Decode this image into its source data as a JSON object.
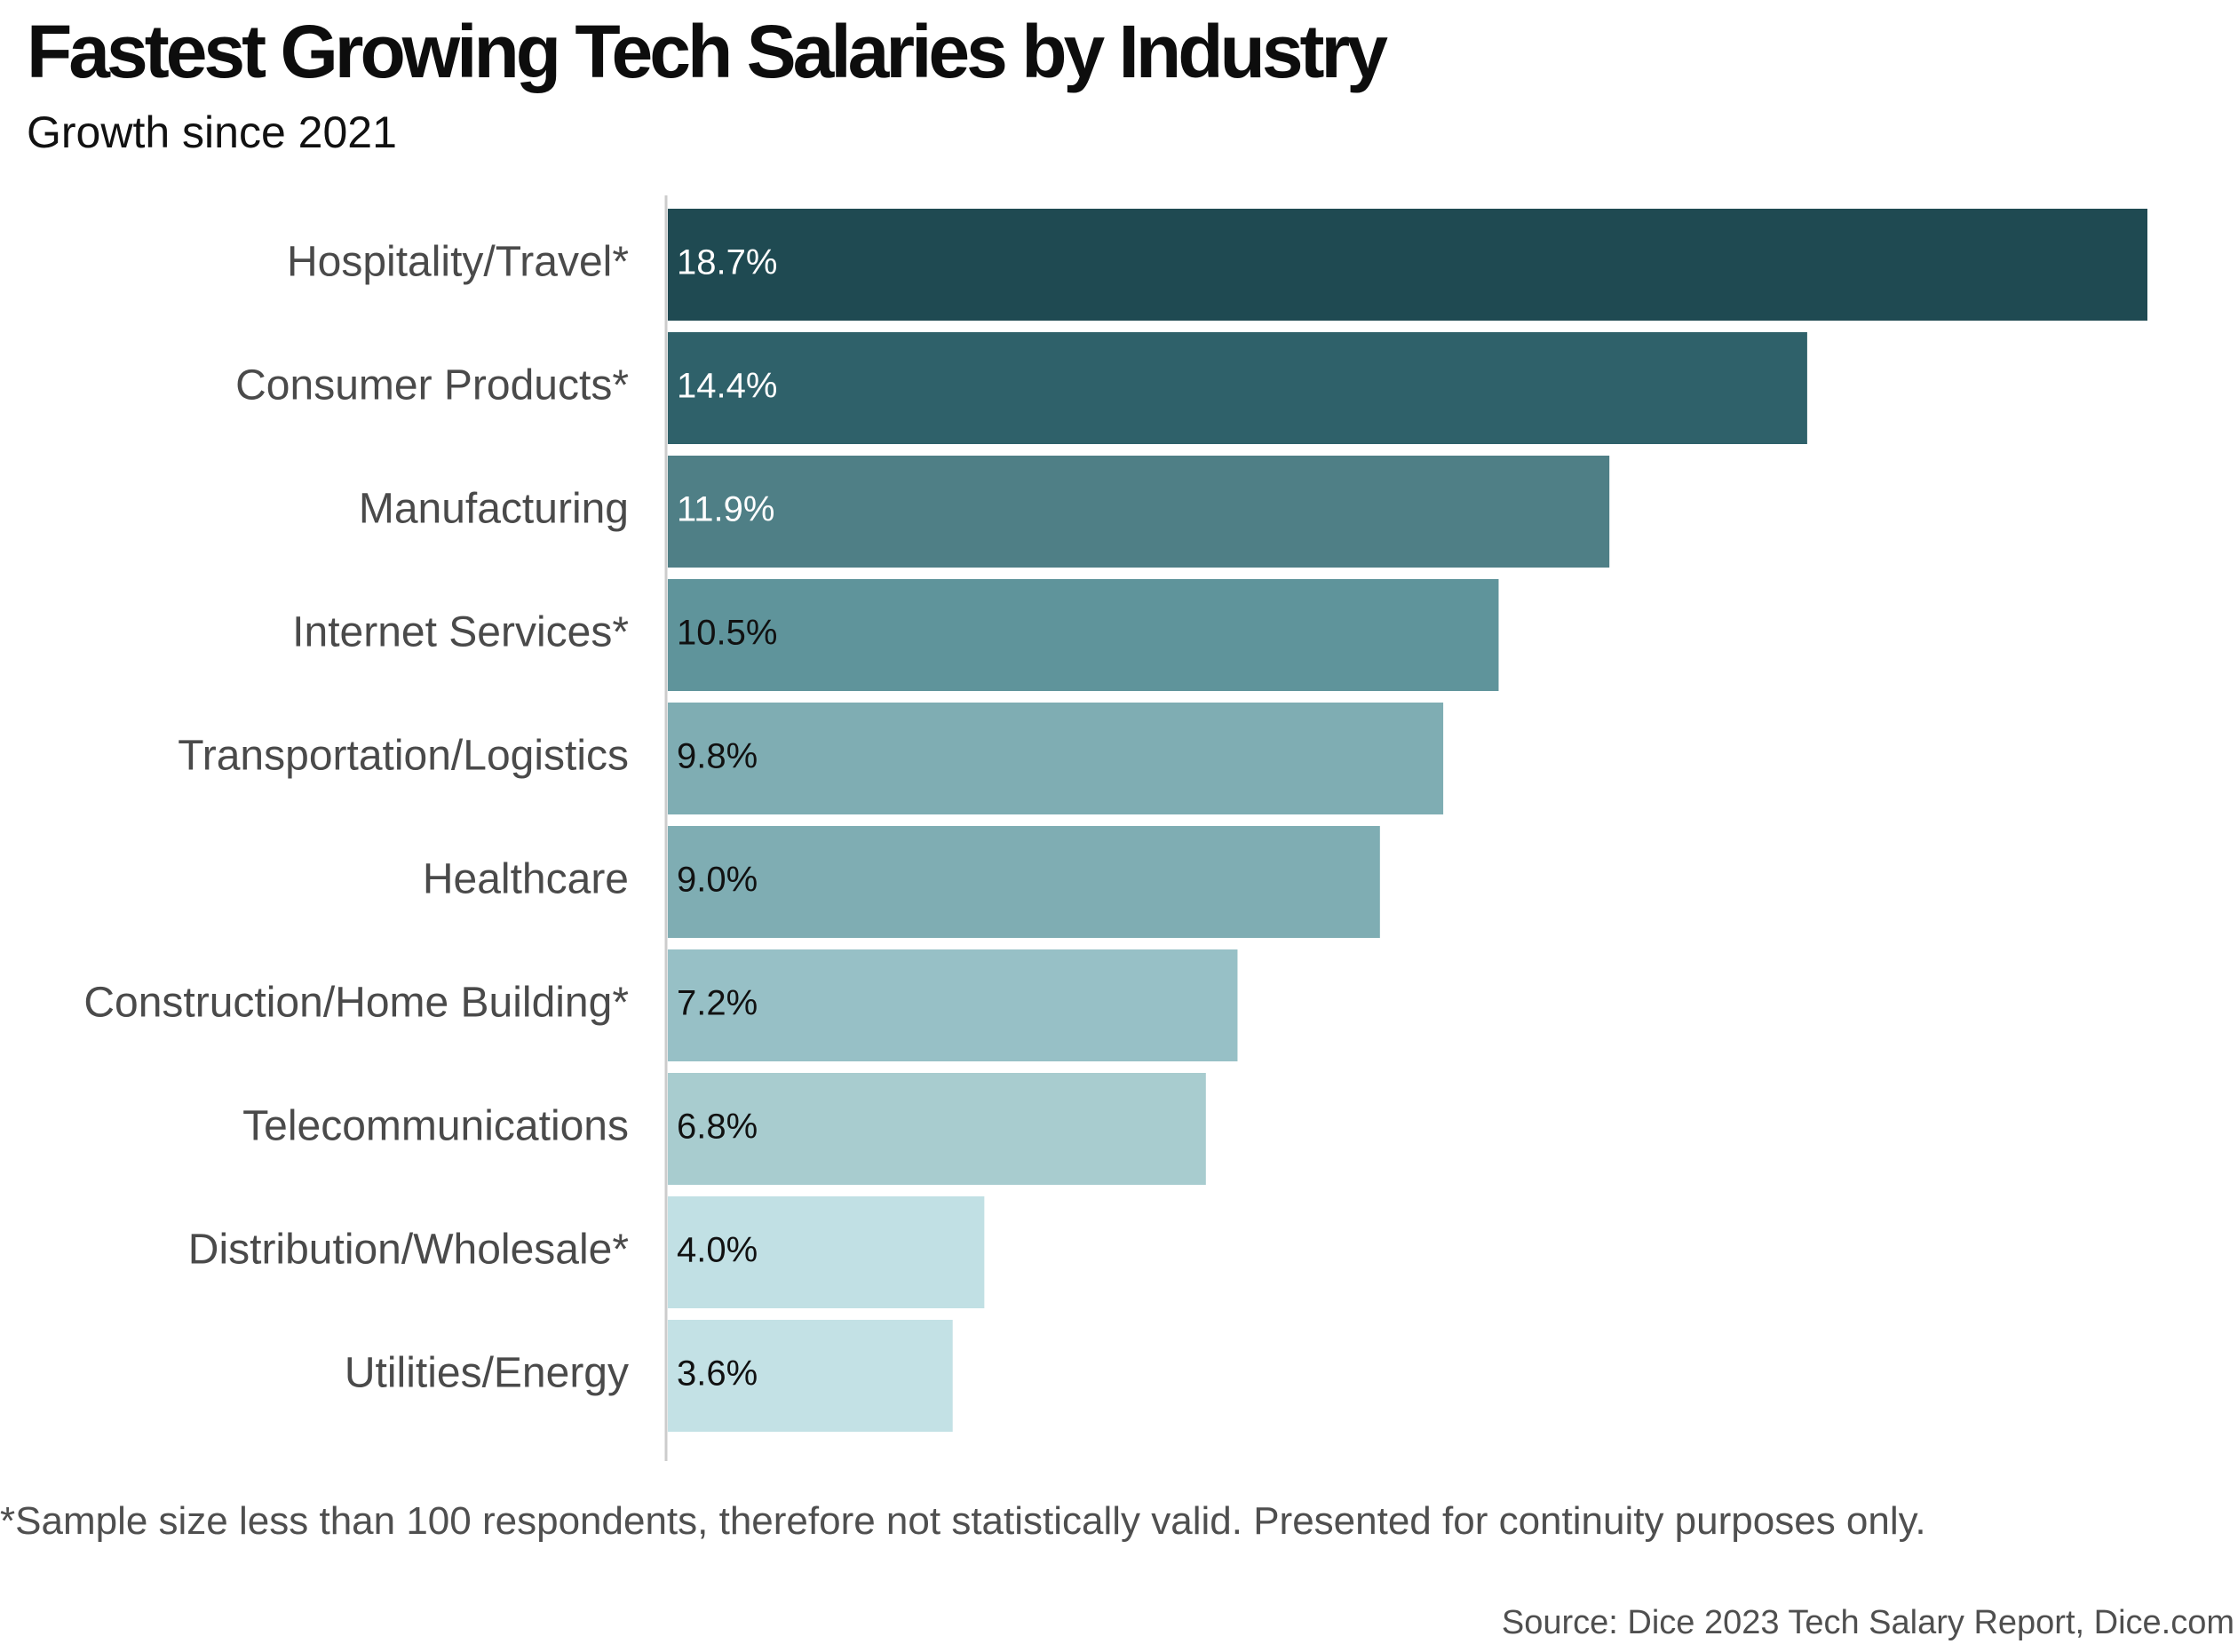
{
  "title": "Fastest Growing Tech Salaries by Industry",
  "subtitle": "Growth since 2021",
  "footnote": "*Sample size less than 100 respondents, therefore not statistically valid. Presented for continuity purposes only.",
  "source": "Source: Dice 2023 Tech Salary Report, Dice.com",
  "chart_data": {
    "type": "bar",
    "orientation": "horizontal",
    "categories": [
      "Hospitality/Travel*",
      "Consumer Products*",
      "Manufacturing",
      "Internet Services*",
      "Transportation/Logistics",
      "Healthcare",
      "Construction/Home Building*",
      "Telecommunications",
      "Distribution/Wholesale*",
      "Utilities/Energy"
    ],
    "values": [
      18.7,
      14.4,
      11.9,
      10.5,
      9.8,
      9.0,
      7.2,
      6.8,
      4.0,
      3.6
    ],
    "value_labels": [
      "18.7%",
      "14.4%",
      "11.9%",
      "10.5%",
      "9.8%",
      "9.0%",
      "7.2%",
      "6.8%",
      "4.0%",
      "3.6%"
    ],
    "colors": [
      "#1f4a52",
      "#2f616a",
      "#4f7f86",
      "#5f949b",
      "#7fadb3",
      "#7fadb3",
      "#97c0c6",
      "#a8cccf",
      "#c1e0e4",
      "#c3e1e5"
    ],
    "label_colors": [
      "#ffffff",
      "#ffffff",
      "#ffffff",
      "#111111",
      "#111111",
      "#111111",
      "#111111",
      "#111111",
      "#111111",
      "#111111"
    ],
    "xlim": [
      0,
      18.7
    ],
    "grid": false,
    "legend": false
  }
}
